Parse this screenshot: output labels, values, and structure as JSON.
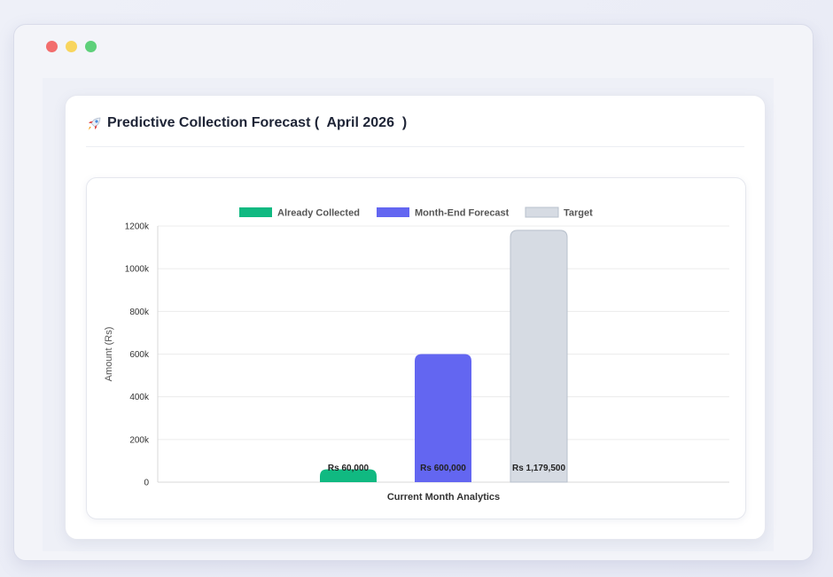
{
  "window": {
    "colors": {
      "close": "#f26d6d",
      "minimize": "#f8d55e",
      "maximize": "#5ed07a"
    }
  },
  "card": {
    "icon": "rocket-icon",
    "title": "Predictive Collection Forecast (  April 2026  )"
  },
  "chart_data": {
    "type": "bar",
    "title": "",
    "xlabel": "Current Month Analytics",
    "ylabel": "Amount (Rs)",
    "ylim": [
      0,
      1200000
    ],
    "yticks": [
      "0",
      "200k",
      "400k",
      "600k",
      "800k",
      "1000k",
      "1200k"
    ],
    "ytick_values": [
      0,
      200000,
      400000,
      600000,
      800000,
      1000000,
      1200000
    ],
    "grid": true,
    "legend_position": "top",
    "series": [
      {
        "name": "Already Collected",
        "value": 60000,
        "label": "Rs 60,000",
        "color": "#10b981"
      },
      {
        "name": "Month-End Forecast",
        "value": 600000,
        "label": "Rs 600,000",
        "color": "#6366f1"
      },
      {
        "name": "Target",
        "value": 1179500,
        "label": "Rs 1,179,500",
        "color": "#d6dbe3",
        "border": "#b8c0cc"
      }
    ]
  }
}
